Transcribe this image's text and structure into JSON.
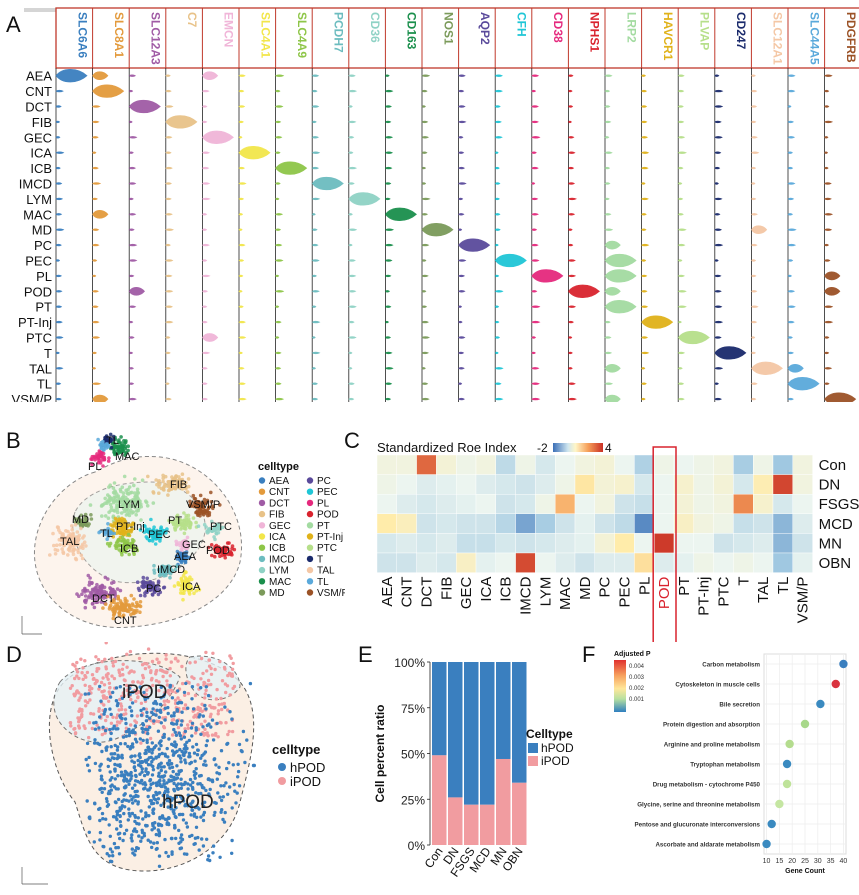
{
  "panel_labels": {
    "A": "A",
    "B": "B",
    "C": "C",
    "D": "D",
    "E": "E",
    "F": "F"
  },
  "panelA": {
    "genes": [
      {
        "name": "SLC6A6",
        "color": "#3a7fbf"
      },
      {
        "name": "SLC8A1",
        "color": "#e39a3c"
      },
      {
        "name": "SLC12A3",
        "color": "#a05ba5"
      },
      {
        "name": "C7",
        "color": "#e8c288"
      },
      {
        "name": "EMCN",
        "color": "#f0b5d8"
      },
      {
        "name": "SLC4A1",
        "color": "#f2e64a"
      },
      {
        "name": "SLC4A9",
        "color": "#8ec648"
      },
      {
        "name": "PCDH7",
        "color": "#6cbcbf"
      },
      {
        "name": "CD36",
        "color": "#8fd2c5"
      },
      {
        "name": "CD163",
        "color": "#1a8f4c"
      },
      {
        "name": "NOS1",
        "color": "#7b9a5a"
      },
      {
        "name": "AQP2",
        "color": "#5a4a9b"
      },
      {
        "name": "CFH",
        "color": "#1fc6d6"
      },
      {
        "name": "CD38",
        "color": "#e5297d"
      },
      {
        "name": "NPHS1",
        "color": "#d9232e"
      },
      {
        "name": "LRP2",
        "color": "#a3dba1"
      },
      {
        "name": "HAVCR1",
        "color": "#e0b21a"
      },
      {
        "name": "PLVAP",
        "color": "#b6df8a"
      },
      {
        "name": "CD247",
        "color": "#1a2a6c"
      },
      {
        "name": "SLC12A1",
        "color": "#f4c7a5"
      },
      {
        "name": "SLC44A5",
        "color": "#5aa9db"
      },
      {
        "name": "PDGFRB",
        "color": "#9b5226"
      }
    ],
    "celltypes": [
      "AEA",
      "CNT",
      "DCT",
      "FIB",
      "GEC",
      "ICA",
      "ICB",
      "IMCD",
      "LYM",
      "MAC",
      "MD",
      "PC",
      "PEC",
      "PL",
      "POD",
      "PT",
      "PT-Inj",
      "PTC",
      "T",
      "TAL",
      "TL",
      "VSM/P"
    ]
  },
  "panelB": {
    "legend_title": "celltype",
    "legend_items": [
      {
        "label": "AEA",
        "color": "#3a7fbf"
      },
      {
        "label": "CNT",
        "color": "#e39a3c"
      },
      {
        "label": "DCT",
        "color": "#a05ba5"
      },
      {
        "label": "FIB",
        "color": "#e8c288"
      },
      {
        "label": "GEC",
        "color": "#f0b5d8"
      },
      {
        "label": "ICA",
        "color": "#f2e64a"
      },
      {
        "label": "ICB",
        "color": "#8ec648"
      },
      {
        "label": "IMCD",
        "color": "#6cbcbf"
      },
      {
        "label": "LYM",
        "color": "#8fd2c5"
      },
      {
        "label": "MAC",
        "color": "#1a8f4c"
      },
      {
        "label": "MD",
        "color": "#7b9a5a"
      },
      {
        "label": "PC",
        "color": "#5a4a9b"
      },
      {
        "label": "PEC",
        "color": "#1fc6d6"
      },
      {
        "label": "PL",
        "color": "#e5297d"
      },
      {
        "label": "POD",
        "color": "#d9232e"
      },
      {
        "label": "PT",
        "color": "#a3dba1"
      },
      {
        "label": "PT-Inj",
        "color": "#e0b21a"
      },
      {
        "label": "PTC",
        "color": "#b6df8a"
      },
      {
        "label": "T",
        "color": "#1a2a6c"
      },
      {
        "label": "TAL",
        "color": "#f4c7a5"
      },
      {
        "label": "TL",
        "color": "#5aa9db"
      },
      {
        "label": "VSM/P",
        "color": "#9b5226"
      }
    ],
    "cluster_labels": [
      "TL",
      "MAC",
      "PL",
      "FIB",
      "VSM/P",
      "PT",
      "PTC",
      "LYM",
      "MD",
      "TAL",
      "PT-Inj",
      "PEC",
      "GEC",
      "TL",
      "ICB",
      "AEA",
      "POD",
      "IMCD",
      "ICA",
      "PC",
      "DCT",
      "CNT"
    ]
  },
  "panelC": {
    "title": "Standardized Roe Index",
    "scale_min": "-2",
    "scale_max": "4",
    "columns": [
      "AEA",
      "CNT",
      "DCT",
      "FIB",
      "GEC",
      "ICA",
      "ICB",
      "IMCD",
      "LYM",
      "MAC",
      "MD",
      "PC",
      "PEC",
      "PL",
      "POD",
      "PT",
      "PT-Inj",
      "PTC",
      "T",
      "TAL",
      "TL",
      "VSM/P"
    ],
    "rows": [
      "Con",
      "DN",
      "FSGS",
      "MCD",
      "MN",
      "OBN"
    ],
    "values": [
      [
        0.2,
        0.2,
        3.0,
        0.3,
        0.1,
        0.2,
        -0.6,
        0.1,
        -0.3,
        0.0,
        0.2,
        0.3,
        0.0,
        -0.8,
        0.1,
        0.0,
        0.1,
        0.2,
        -0.9,
        0.1,
        -1.0,
        0.2
      ],
      [
        0.1,
        0.0,
        -0.2,
        -0.1,
        0.0,
        -0.2,
        -0.3,
        -0.4,
        -0.2,
        0.1,
        0.9,
        0.3,
        0.4,
        -0.3,
        0.0,
        0.4,
        0.1,
        0.3,
        -0.3,
        0.7,
        3.6,
        0.2
      ],
      [
        0.0,
        -0.2,
        -0.3,
        -0.2,
        -0.1,
        0.0,
        -0.4,
        -0.3,
        0.1,
        1.7,
        0.0,
        0.2,
        -0.4,
        -0.5,
        0.0,
        0.3,
        0.1,
        0.2,
        2.4,
        0.4,
        -0.3,
        0.0
      ],
      [
        0.8,
        0.6,
        -0.4,
        -0.3,
        -0.4,
        -0.4,
        -0.7,
        -1.4,
        -0.9,
        -0.4,
        -0.1,
        -0.4,
        -0.6,
        -1.7,
        0.0,
        0.5,
        0.2,
        0.1,
        -0.5,
        -0.4,
        -1.2,
        -0.2
      ],
      [
        -0.3,
        -0.2,
        -0.3,
        -0.2,
        -0.5,
        -0.5,
        -0.3,
        -0.4,
        -0.3,
        -0.2,
        -0.1,
        0.3,
        0.8,
        0.0,
        3.8,
        0.0,
        0.0,
        -0.4,
        -0.3,
        -0.2,
        -1.2,
        -0.4
      ],
      [
        -0.4,
        -0.4,
        -0.2,
        -0.3,
        0.5,
        -0.1,
        0.0,
        3.5,
        0.0,
        -0.2,
        -0.4,
        -0.2,
        -0.2,
        1.0,
        -0.2,
        -0.1,
        0.1,
        0.0,
        0.1,
        0.0,
        -1.0,
        -0.1
      ]
    ],
    "highlight_column": "POD"
  },
  "panelD": {
    "legend_title": "celltype",
    "legend_items": [
      {
        "label": "hPOD",
        "color": "#3a7fbf"
      },
      {
        "label": "iPOD",
        "color": "#f19ca0"
      }
    ],
    "cluster_labels": [
      "iPOD",
      "hPOD"
    ]
  },
  "chart_data": {
    "type": "bar",
    "stacked": true,
    "categories": [
      "Con",
      "DN",
      "FSGS",
      "MCD",
      "MN",
      "OBN"
    ],
    "series": [
      {
        "name": "hPOD",
        "values": [
          51,
          74,
          78,
          78,
          53,
          66
        ]
      },
      {
        "name": "iPOD",
        "values": [
          49,
          26,
          22,
          22,
          47,
          34
        ]
      }
    ],
    "ylabel": "Cell percent ratio",
    "ylim": [
      0,
      100
    ],
    "yticks": [
      "0%",
      "25%",
      "50%",
      "75%",
      "100%"
    ],
    "legend_title": "Celltype",
    "legend_position": "right",
    "colors": {
      "hPOD": "#3a7fbf",
      "iPOD": "#f19ca0"
    }
  },
  "panelF": {
    "legend_title": "Adjusted P",
    "legend_ticks": [
      "0.004",
      "0.003",
      "0.002",
      "0.001"
    ],
    "xlabel": "Gene Count",
    "xticks": [
      10,
      15,
      20,
      25,
      30,
      35,
      40
    ],
    "xlim": [
      9,
      41
    ],
    "terms": [
      {
        "label": "Carbon metabolism",
        "count": 40,
        "color": "#3a7fbf"
      },
      {
        "label": "Cytoskeleton in muscle cells",
        "count": 37,
        "color": "#d9333f"
      },
      {
        "label": "Bile secretion",
        "count": 31,
        "color": "#3a8ac0"
      },
      {
        "label": "Protein digestion and absorption",
        "count": 25,
        "color": "#a8d88a"
      },
      {
        "label": "Arginine and proline metabolism",
        "count": 19,
        "color": "#b4dc8e"
      },
      {
        "label": "Tryptophan metabolism",
        "count": 18,
        "color": "#3a8ac0"
      },
      {
        "label": "Drug metabolism - cytochrome P450",
        "count": 18,
        "color": "#bfe39a"
      },
      {
        "label": "Glycine, serine and threonine metabolism",
        "count": 15,
        "color": "#c5e6a2"
      },
      {
        "label": "Pentose and glucuronate interconversions",
        "count": 12,
        "color": "#3a8ac0"
      },
      {
        "label": "Ascorbate and aldarate metabolism",
        "count": 10,
        "color": "#3a8ac0"
      }
    ]
  }
}
